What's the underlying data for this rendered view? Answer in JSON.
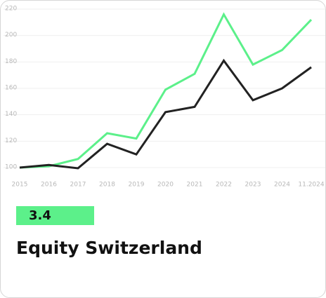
{
  "chart_data": {
    "type": "line",
    "categories": [
      "2015",
      "2016",
      "2017",
      "2018",
      "2019",
      "2020",
      "2021",
      "2022",
      "2023",
      "2024",
      "11.2024"
    ],
    "series": [
      {
        "color": "#5cf08a",
        "values": [
          100,
          101,
          106.5,
          126,
          122,
          159,
          171,
          216,
          178,
          189,
          212
        ]
      },
      {
        "color": "#222222",
        "values": [
          100,
          102,
          99.5,
          118,
          110,
          142,
          146,
          181,
          151,
          160,
          176
        ]
      }
    ],
    "ylim": [
      100,
      220
    ],
    "yticks": [
      100,
      120,
      140,
      160,
      180,
      200,
      220
    ],
    "grid": true
  },
  "badge": "3.4",
  "title": "Equity Switzerland"
}
